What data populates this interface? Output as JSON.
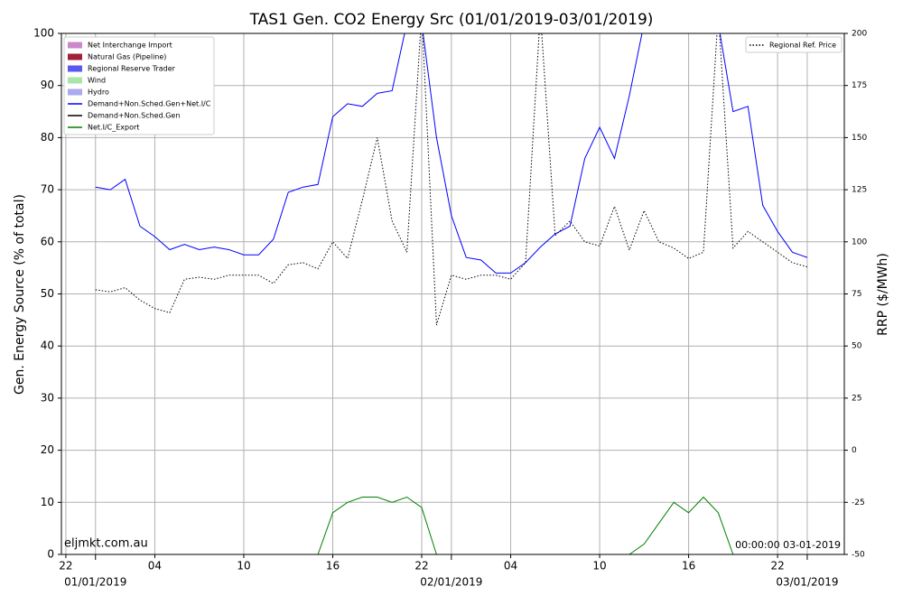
{
  "chart_data": {
    "type": "line",
    "title": "TAS1 Gen. CO2 Energy Src (01/01/2019-03/01/2019)",
    "ylabel": "Gen. Energy Source (% of total)",
    "y2label": "RRP ($/MWh)",
    "annotations": [
      "eljmkt.com.au",
      "00:00:00 03-01-2019"
    ],
    "x": [
      0,
      1,
      2,
      3,
      4,
      5,
      6,
      7,
      8,
      9,
      10,
      11,
      12,
      13,
      14,
      15,
      16,
      17,
      18,
      19,
      20,
      21,
      22,
      23,
      24,
      25,
      26,
      27,
      28,
      29,
      30,
      31,
      32,
      33,
      34,
      35,
      36,
      37,
      38,
      39,
      40,
      41,
      42,
      43,
      44,
      45,
      46,
      47,
      48
    ],
    "xlim": [
      -2.3,
      50.5
    ],
    "xticks": [
      {
        "value": -2,
        "label": "22"
      },
      {
        "value": 4,
        "label": "04"
      },
      {
        "value": 10,
        "label": "10"
      },
      {
        "value": 16,
        "label": "16"
      },
      {
        "value": 22,
        "label": "22"
      },
      {
        "value": 28,
        "label": "04"
      },
      {
        "value": 34,
        "label": "10"
      },
      {
        "value": 40,
        "label": "16"
      },
      {
        "value": 46,
        "label": "22"
      }
    ],
    "xticks_major": [
      {
        "value": 0,
        "label": "01/01/2019"
      },
      {
        "value": 24,
        "label": "02/01/2019"
      },
      {
        "value": 48,
        "label": "03/01/2019"
      }
    ],
    "ylim": [
      0,
      100
    ],
    "yticks": [
      0,
      10,
      20,
      30,
      40,
      50,
      60,
      70,
      80,
      90,
      100
    ],
    "y2lim": [
      -50,
      200
    ],
    "y2ticks": [
      -50,
      -25,
      0,
      25,
      50,
      75,
      100,
      125,
      150,
      175,
      200
    ],
    "grid": true,
    "legend": "upper left",
    "legend2": "upper right",
    "series": [
      {
        "name": "Net Interchange Import",
        "color": "#cc88cc",
        "style": "area",
        "values": [
          null,
          null,
          null,
          null,
          null,
          null,
          null,
          null,
          null,
          null,
          null,
          null,
          null,
          null,
          null,
          null,
          null,
          null,
          null,
          null,
          null,
          null,
          null,
          null,
          null,
          null,
          null,
          null,
          null,
          null,
          null,
          null,
          null,
          null,
          null,
          null,
          null,
          null,
          null,
          null,
          null,
          null,
          null,
          null,
          null,
          null,
          null,
          null,
          null
        ]
      },
      {
        "name": "Natural Gas (Pipeline)",
        "color": "#a0203a",
        "style": "area",
        "values": [
          null,
          null,
          null,
          null,
          null,
          null,
          null,
          null,
          null,
          null,
          null,
          null,
          null,
          null,
          null,
          null,
          null,
          null,
          null,
          null,
          null,
          null,
          null,
          null,
          null,
          null,
          null,
          null,
          null,
          null,
          null,
          null,
          null,
          null,
          null,
          null,
          null,
          null,
          null,
          null,
          null,
          null,
          null,
          null,
          null,
          null,
          null,
          null,
          null
        ]
      },
      {
        "name": "Regional Reserve Trader",
        "color": "#5a5aee",
        "style": "area",
        "values": [
          null,
          null,
          null,
          null,
          null,
          null,
          null,
          null,
          null,
          null,
          null,
          null,
          null,
          null,
          null,
          null,
          null,
          null,
          null,
          null,
          null,
          null,
          null,
          null,
          null,
          null,
          null,
          null,
          null,
          null,
          null,
          null,
          null,
          null,
          null,
          null,
          null,
          null,
          null,
          null,
          null,
          null,
          null,
          null,
          null,
          null,
          null,
          null,
          null
        ]
      },
      {
        "name": "Wind",
        "color": "#a8e6a8",
        "style": "area",
        "values": [
          null,
          null,
          null,
          null,
          null,
          null,
          null,
          null,
          null,
          null,
          null,
          null,
          null,
          null,
          null,
          null,
          null,
          null,
          null,
          null,
          null,
          null,
          null,
          null,
          null,
          null,
          null,
          null,
          null,
          null,
          null,
          null,
          null,
          null,
          null,
          null,
          null,
          null,
          null,
          null,
          null,
          null,
          null,
          null,
          null,
          null,
          null,
          null,
          null
        ]
      },
      {
        "name": "Hydro",
        "color": "#aaaaee",
        "style": "area",
        "values": [
          null,
          null,
          null,
          null,
          null,
          null,
          null,
          null,
          null,
          null,
          null,
          null,
          null,
          null,
          null,
          null,
          null,
          null,
          null,
          null,
          null,
          null,
          null,
          null,
          null,
          null,
          null,
          null,
          null,
          null,
          null,
          null,
          null,
          null,
          null,
          null,
          null,
          null,
          null,
          null,
          null,
          null,
          null,
          null,
          null,
          null,
          null,
          null,
          null
        ]
      },
      {
        "name": "Demand+Non.Sched.Gen+Net.I/C",
        "color": "#0000ff",
        "style": "line",
        "values": [
          70.5,
          70,
          72,
          63,
          61,
          58.5,
          59.5,
          58.5,
          59,
          58.5,
          57.5,
          57.5,
          60.5,
          69.5,
          70.5,
          71,
          84,
          86.5,
          86,
          88.5,
          89,
          102,
          102,
          80,
          65,
          57,
          56.5,
          54,
          54,
          56,
          59,
          61.5,
          63,
          76,
          82,
          76,
          88,
          102,
          102,
          102,
          102,
          102,
          102,
          85,
          86,
          67,
          62,
          58,
          57
        ]
      },
      {
        "name": "Demand+Non.Sched.Gen",
        "color": "#000000",
        "style": "line",
        "values": [
          null,
          null,
          null,
          null,
          null,
          null,
          null,
          null,
          null,
          null,
          null,
          null,
          null,
          null,
          null,
          null,
          null,
          null,
          null,
          null,
          null,
          null,
          null,
          null,
          null,
          null,
          null,
          null,
          null,
          null,
          null,
          null,
          null,
          null,
          null,
          null,
          null,
          null,
          null,
          null,
          null,
          null,
          null,
          null,
          null,
          null,
          null,
          null,
          null
        ]
      },
      {
        "name": "Net.I/C_Export",
        "color": "#008000",
        "style": "line",
        "values": [
          0,
          0,
          0,
          0,
          0,
          0,
          0,
          0,
          0,
          0,
          0,
          0,
          0,
          0,
          0,
          0,
          8,
          10,
          11,
          11,
          10,
          11,
          9,
          0,
          0,
          0,
          0,
          0,
          0,
          0,
          0,
          0,
          0,
          0,
          0,
          0,
          0,
          2,
          6,
          10,
          8,
          11,
          8,
          0,
          0,
          0,
          0,
          0,
          0
        ]
      },
      {
        "name": "Regional Ref. Price",
        "color": "#000000",
        "style": "dotted",
        "axis": "y2",
        "values": [
          77,
          76,
          78,
          72,
          68,
          66,
          82,
          83,
          82,
          84,
          84,
          84,
          80,
          89,
          90,
          87,
          100,
          92,
          120,
          150,
          110,
          95,
          210,
          60,
          84,
          82,
          84,
          84,
          82,
          90,
          210,
          103,
          110,
          100,
          98,
          117,
          96,
          115,
          100,
          97,
          92,
          95,
          210,
          97,
          105,
          100,
          95,
          90,
          88
        ]
      }
    ]
  }
}
